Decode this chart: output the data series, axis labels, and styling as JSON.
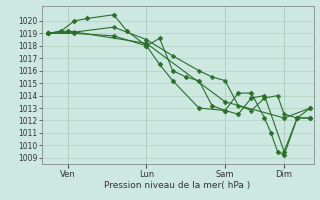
{
  "bg_color": "#cce8e0",
  "grid_color": "#aaccbb",
  "line_color": "#2a6e2a",
  "xlabel": "Pression niveau de la mer( hPa )",
  "ylim": [
    1008.5,
    1021.2
  ],
  "yticks": [
    1009,
    1010,
    1011,
    1012,
    1013,
    1014,
    1015,
    1016,
    1017,
    1018,
    1019,
    1020
  ],
  "xtick_labels": [
    "Ven",
    "Lun",
    "Sam",
    "Dim"
  ],
  "xtick_positions": [
    8,
    32,
    56,
    74
  ],
  "xlim": [
    0,
    83
  ],
  "series": [
    {
      "x": [
        2,
        8,
        32,
        56,
        74,
        82
      ],
      "y": [
        1019.0,
        1019.2,
        1018.2,
        1013.5,
        1012.2,
        1013.0
      ],
      "marker": "D",
      "ms": 2.5,
      "lw": 0.8
    },
    {
      "x": [
        2,
        6,
        10,
        14,
        22,
        26,
        32,
        36,
        40,
        44,
        48,
        52,
        56,
        60,
        64,
        68,
        74,
        78,
        82
      ],
      "y": [
        1019.0,
        1019.2,
        1020.0,
        1020.2,
        1020.5,
        1019.2,
        1018.0,
        1018.6,
        1016.0,
        1015.5,
        1015.2,
        1013.2,
        1012.8,
        1012.5,
        1013.8,
        1014.0,
        1009.5,
        1012.2,
        1012.2
      ],
      "marker": "D",
      "ms": 2.5,
      "lw": 0.8
    },
    {
      "x": [
        2,
        10,
        22,
        32,
        40,
        48,
        52,
        56,
        60,
        64,
        68,
        72,
        74,
        78,
        82
      ],
      "y": [
        1019.0,
        1019.1,
        1019.5,
        1018.5,
        1017.2,
        1016.0,
        1015.5,
        1015.2,
        1013.2,
        1012.8,
        1013.8,
        1014.0,
        1012.5,
        1012.2,
        1013.0
      ],
      "marker": "P",
      "ms": 2.8,
      "lw": 0.8
    },
    {
      "x": [
        2,
        10,
        22,
        32,
        36,
        40,
        48,
        56,
        60,
        64,
        68,
        70,
        72,
        74,
        78,
        82
      ],
      "y": [
        1019.0,
        1019.0,
        1018.8,
        1018.0,
        1016.5,
        1015.2,
        1013.0,
        1012.8,
        1014.2,
        1014.2,
        1012.2,
        1011.0,
        1009.5,
        1009.2,
        1012.2,
        1012.2
      ],
      "marker": "D",
      "ms": 2.5,
      "lw": 0.8
    }
  ]
}
